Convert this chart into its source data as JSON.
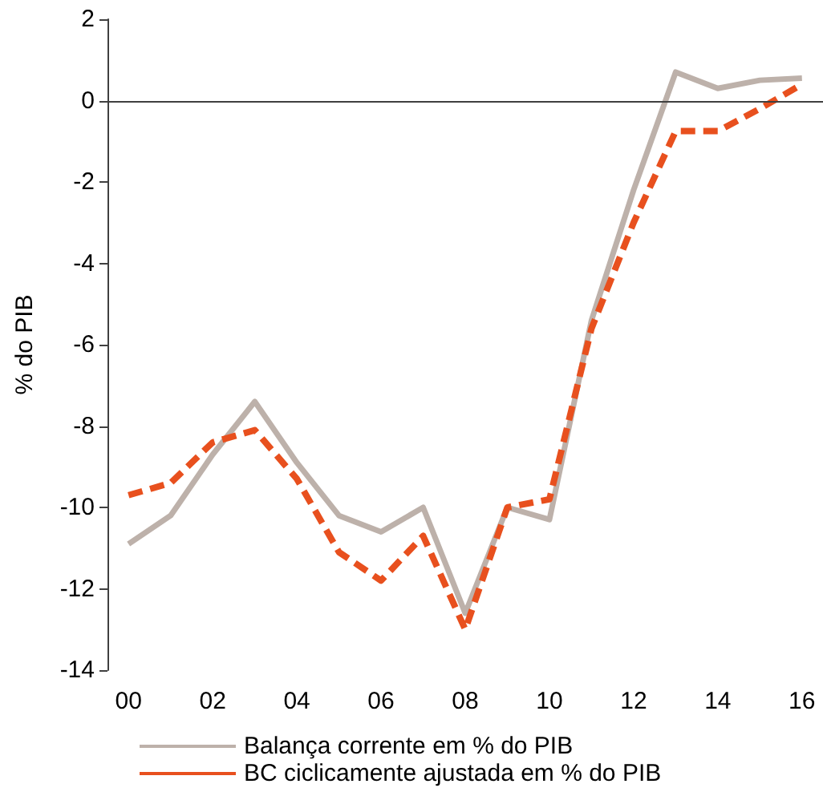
{
  "chart_data": {
    "type": "line",
    "ylabel": "% do PIB",
    "categories": [
      "00",
      null,
      "02",
      null,
      "04",
      null,
      "06",
      null,
      "08",
      null,
      "10",
      null,
      "12",
      null,
      "14",
      null,
      "16"
    ],
    "series": [
      {
        "name": "Balança corrente em % do PIB",
        "color": "#bdb1aa",
        "line_style": "solid",
        "values": [
          -10.9,
          -10.2,
          -8.7,
          -7.4,
          -8.9,
          -10.2,
          -10.6,
          -10.0,
          -12.6,
          -10.0,
          -10.3,
          -5.4,
          -2.2,
          0.7,
          0.3,
          0.5,
          0.55
        ]
      },
      {
        "name": "BC ciclicamente ajustada em % do PIB",
        "color": "#e8501e",
        "line_style": "dashed",
        "values": [
          -9.7,
          -9.4,
          -8.4,
          -8.1,
          -9.3,
          -11.1,
          -11.8,
          -10.7,
          -13.0,
          -10.0,
          -9.8,
          -5.6,
          -3.0,
          -0.75,
          -0.75,
          -0.2,
          0.4
        ]
      }
    ],
    "ylim": [
      -14,
      2
    ],
    "yticks": [
      -14,
      -12,
      -10,
      -8,
      -6,
      -4,
      -2,
      0,
      2
    ],
    "grid": false,
    "legend": "bottom",
    "marker": "none",
    "ref_lines": [
      {
        "axis": "y",
        "value": 0,
        "color": "#404040"
      }
    ]
  }
}
